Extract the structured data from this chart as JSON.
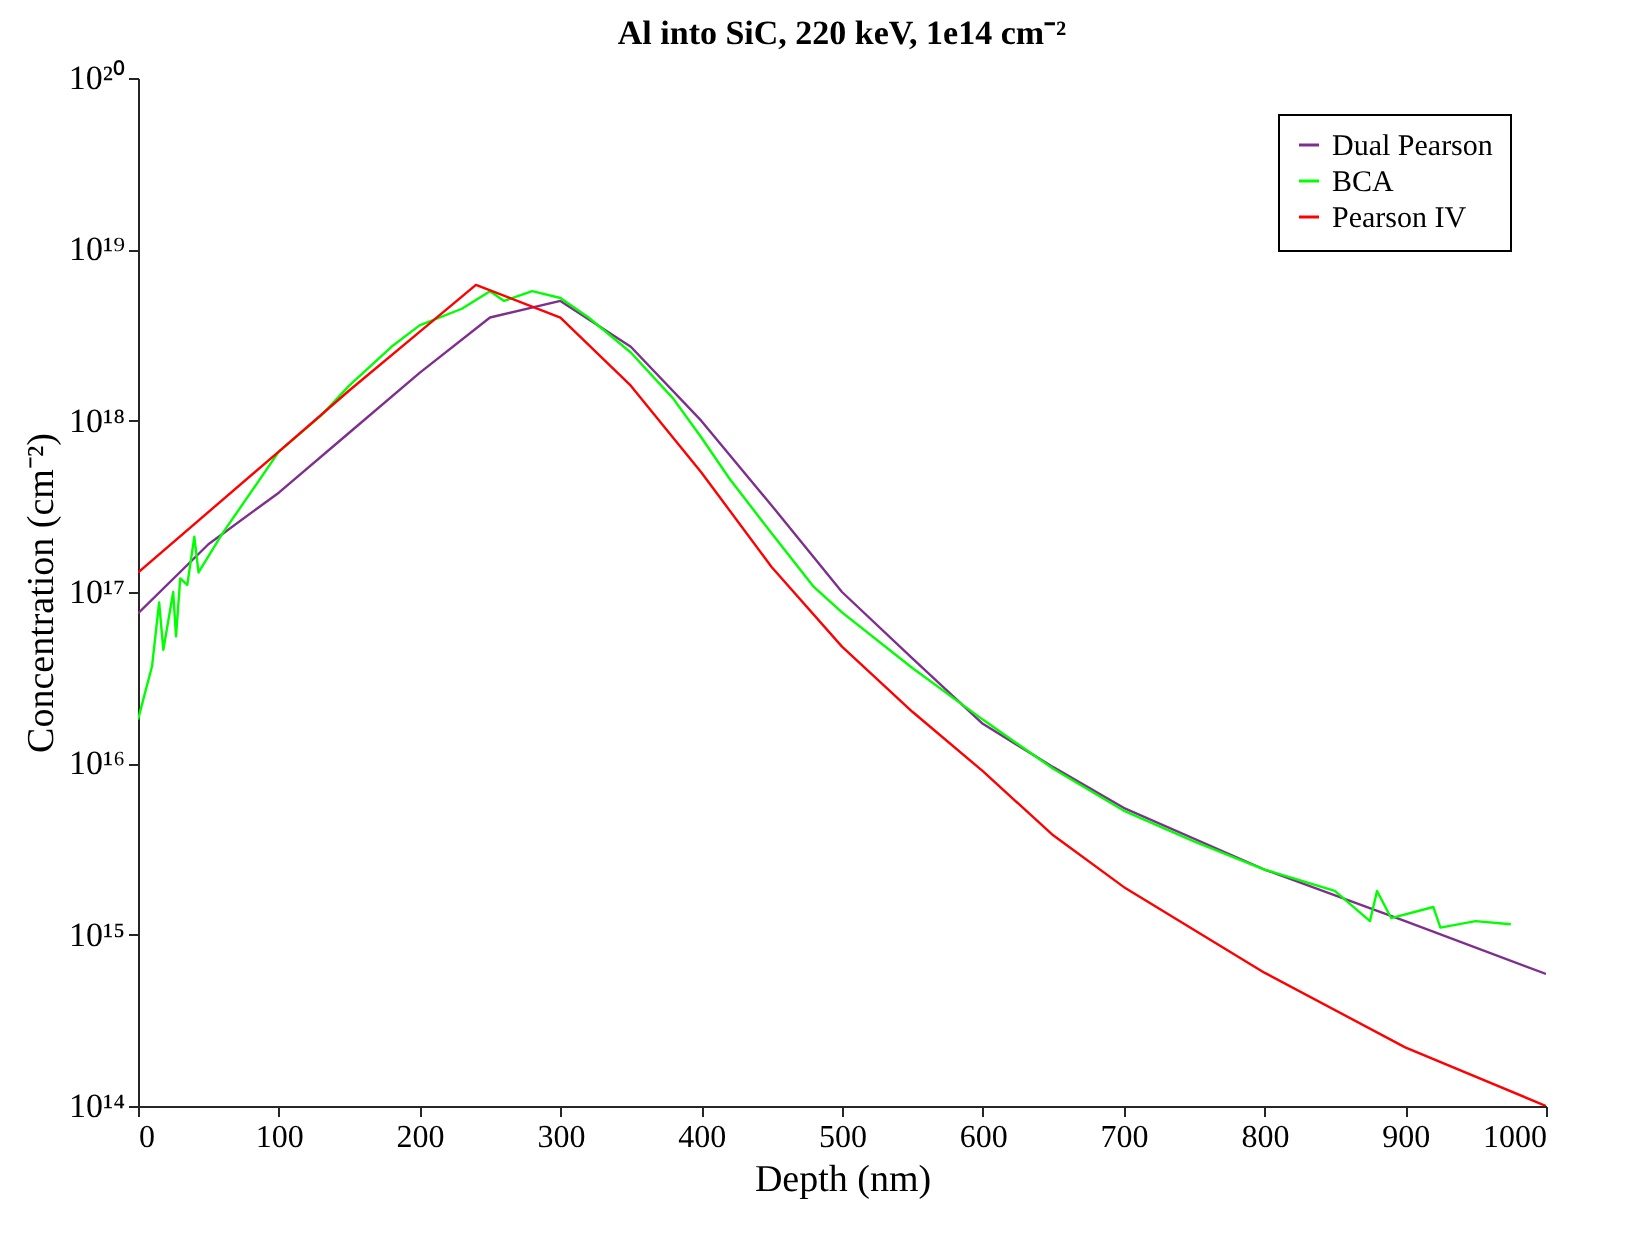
{
  "chart_data": {
    "type": "line",
    "title": "Al into SiC, 220 keV, 1e14 cm⁻²",
    "xlabel": "Depth (nm)",
    "ylabel": "Concentration (cm⁻²)",
    "log": "y",
    "legend": "top right",
    "line_style": "solid",
    "marker": "none",
    "xlim": [
      0,
      1000
    ],
    "xticks": [
      0,
      100,
      200,
      300,
      400,
      500,
      600,
      700,
      800,
      900,
      1000
    ],
    "ylim": [
      100000000000000.0,
      1e+20
    ],
    "yticks": [
      {
        "value": 100000000000000.0,
        "label": "10¹⁴"
      },
      {
        "value": 1000000000000000.0,
        "label": "10¹⁵"
      },
      {
        "value": 1e+16,
        "label": "10¹⁶"
      },
      {
        "value": 1e+17,
        "label": "10¹⁷"
      },
      {
        "value": 1e+18,
        "label": "10¹⁸"
      },
      {
        "value": 1e+19,
        "label": "10¹⁹"
      },
      {
        "value": 1e+20,
        "label": "10²⁰"
      }
    ],
    "series": [
      {
        "name": "Dual Pearson",
        "color": "#7e2f8e",
        "x": [
          0,
          50,
          100,
          150,
          200,
          250,
          300,
          350,
          400,
          450,
          500,
          550,
          600,
          650,
          700,
          800,
          900,
          1000
        ],
        "values": [
          7.5e+16,
          1.9e+17,
          3.8e+17,
          8.5e+17,
          1.9e+18,
          4e+18,
          5e+18,
          2.7e+18,
          1e+18,
          3.2e+17,
          1e+17,
          4.1e+16,
          1.7e+16,
          9500000000000000.0,
          5500000000000000.0,
          2400000000000000.0,
          1200000000000000.0,
          590000000000000.0
        ]
      },
      {
        "name": "BCA",
        "color": "#00ff00",
        "x": [
          0,
          10,
          15,
          18,
          25,
          27,
          30,
          35,
          40,
          43,
          60,
          80,
          100,
          130,
          150,
          180,
          200,
          230,
          250,
          260,
          280,
          300,
          320,
          350,
          380,
          400,
          420,
          450,
          480,
          500,
          550,
          600,
          650,
          700,
          750,
          800,
          850,
          875,
          880,
          890,
          920,
          925,
          950,
          975
        ],
        "values": [
          1.8e+16,
          3.7e+16,
          8.7e+16,
          4.6e+16,
          1e+17,
          5.5e+16,
          1.2e+17,
          1.1e+17,
          2.1e+17,
          1.3e+17,
          2.2e+17,
          3.8e+17,
          6.6e+17,
          1.07e+18,
          1.6e+18,
          2.7e+18,
          3.6e+18,
          4.5e+18,
          5.7e+18,
          5e+18,
          5.7e+18,
          5.2e+18,
          4e+18,
          2.5e+18,
          1.35e+18,
          8e+17,
          4.6e+17,
          2.2e+17,
          1.07e+17,
          7.6e+16,
          3.6e+16,
          1.8e+16,
          9300000000000000.0,
          5300000000000000.0,
          3500000000000000.0,
          2400000000000000.0,
          1800000000000000.0,
          1200000000000000.0,
          1800000000000000.0,
          1250000000000000.0,
          1450000000000000.0,
          1100000000000000.0,
          1200000000000000.0,
          1150000000000000.0
        ]
      },
      {
        "name": "Pearson IV",
        "color": "#ff0000",
        "x": [
          0,
          100,
          150,
          200,
          240,
          300,
          350,
          400,
          450,
          500,
          550,
          600,
          650,
          700,
          800,
          900,
          1000
        ],
        "values": [
          1.3e+17,
          6.6e+17,
          1.5e+18,
          3.3e+18,
          6.2e+18,
          4e+18,
          1.6e+18,
          5e+17,
          1.4e+17,
          4.8e+16,
          2e+16,
          9000000000000000.0,
          3800000000000000.0,
          1900000000000000.0,
          600000000000000.0,
          220000000000000.0,
          100000000000000.0
        ]
      }
    ]
  }
}
